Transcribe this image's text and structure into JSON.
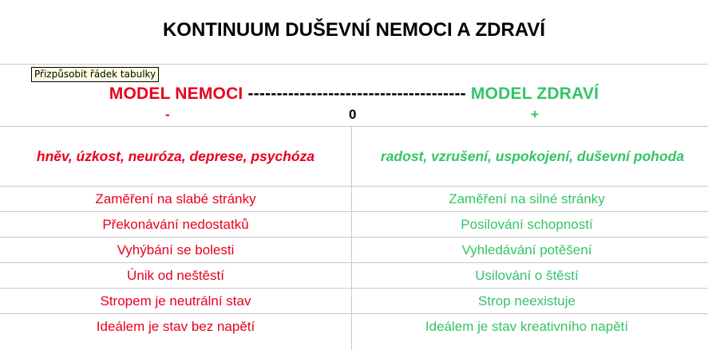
{
  "title": "KONTINUUM DUŠEVNÍ NEMOCI A ZDRAVÍ",
  "header": {
    "left": "MODEL NEMOCI",
    "dashes": "--------------------------------------",
    "right": "MODEL ZDRAVÍ",
    "minus": "-",
    "zero": "0",
    "plus": "+"
  },
  "emotions": {
    "left": "hněv, úzkost, neuróza, deprese, psychóza",
    "right": "radost, vzrušení, uspokojení, duševní pohoda"
  },
  "rows": [
    {
      "left": "Zaměření na slabé stránky",
      "right": "Zaměření na silné stránky"
    },
    {
      "left": "Překonávání nedostatků",
      "right": "Posilování schopností"
    },
    {
      "left": "Vyhýbání se bolesti",
      "right": "Vyhledávání potěšení"
    },
    {
      "left": "Únik od neštěstí",
      "right": "Usilování o štěstí"
    },
    {
      "left": "Stropem je neutrální stav",
      "right": "Strop neexistuje"
    },
    {
      "left": "Ideálem je stav bez napětí",
      "right": "Ideálem je stav kreativního napětí"
    }
  ],
  "tooltip": "Přizpůsobit řádek tabulky",
  "colors": {
    "illness": "#e8001c",
    "health": "#33c466"
  }
}
